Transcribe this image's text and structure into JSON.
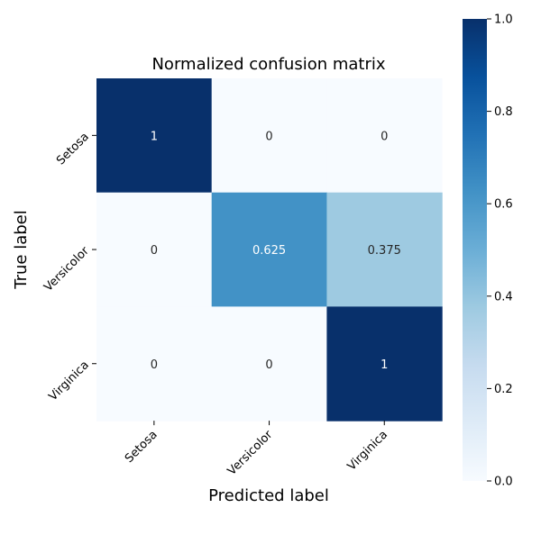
{
  "chart_data": {
    "type": "heatmap",
    "title": "Normalized confusion matrix",
    "xlabel": "Predicted label",
    "ylabel": "True label",
    "x_categories": [
      "Setosa",
      "Versicolor",
      "Virginica"
    ],
    "y_categories": [
      "Setosa",
      "Versicolor",
      "Virginica"
    ],
    "values": [
      [
        1,
        0,
        0
      ],
      [
        0,
        0.625,
        0.375
      ],
      [
        0,
        0,
        1
      ]
    ],
    "cell_labels": [
      [
        "1",
        "0",
        "0"
      ],
      [
        "0",
        "0.625",
        "0.375"
      ],
      [
        "0",
        "0",
        "1"
      ]
    ],
    "colormap": "Blues",
    "colormap_stops": [
      "#f7fbff",
      "#deebf7",
      "#c6dbef",
      "#9ecae1",
      "#6baed6",
      "#4292c6",
      "#2171b5",
      "#08519c",
      "#08306b"
    ],
    "colorbar": {
      "range": [
        0.0,
        1.0
      ],
      "ticks": [
        0.0,
        0.2,
        0.4,
        0.6,
        0.8,
        1.0
      ],
      "tick_labels": [
        "0.0",
        "0.2",
        "0.4",
        "0.6",
        "0.8",
        "1.0"
      ]
    },
    "grid": false,
    "legend": "colorbar-right"
  }
}
